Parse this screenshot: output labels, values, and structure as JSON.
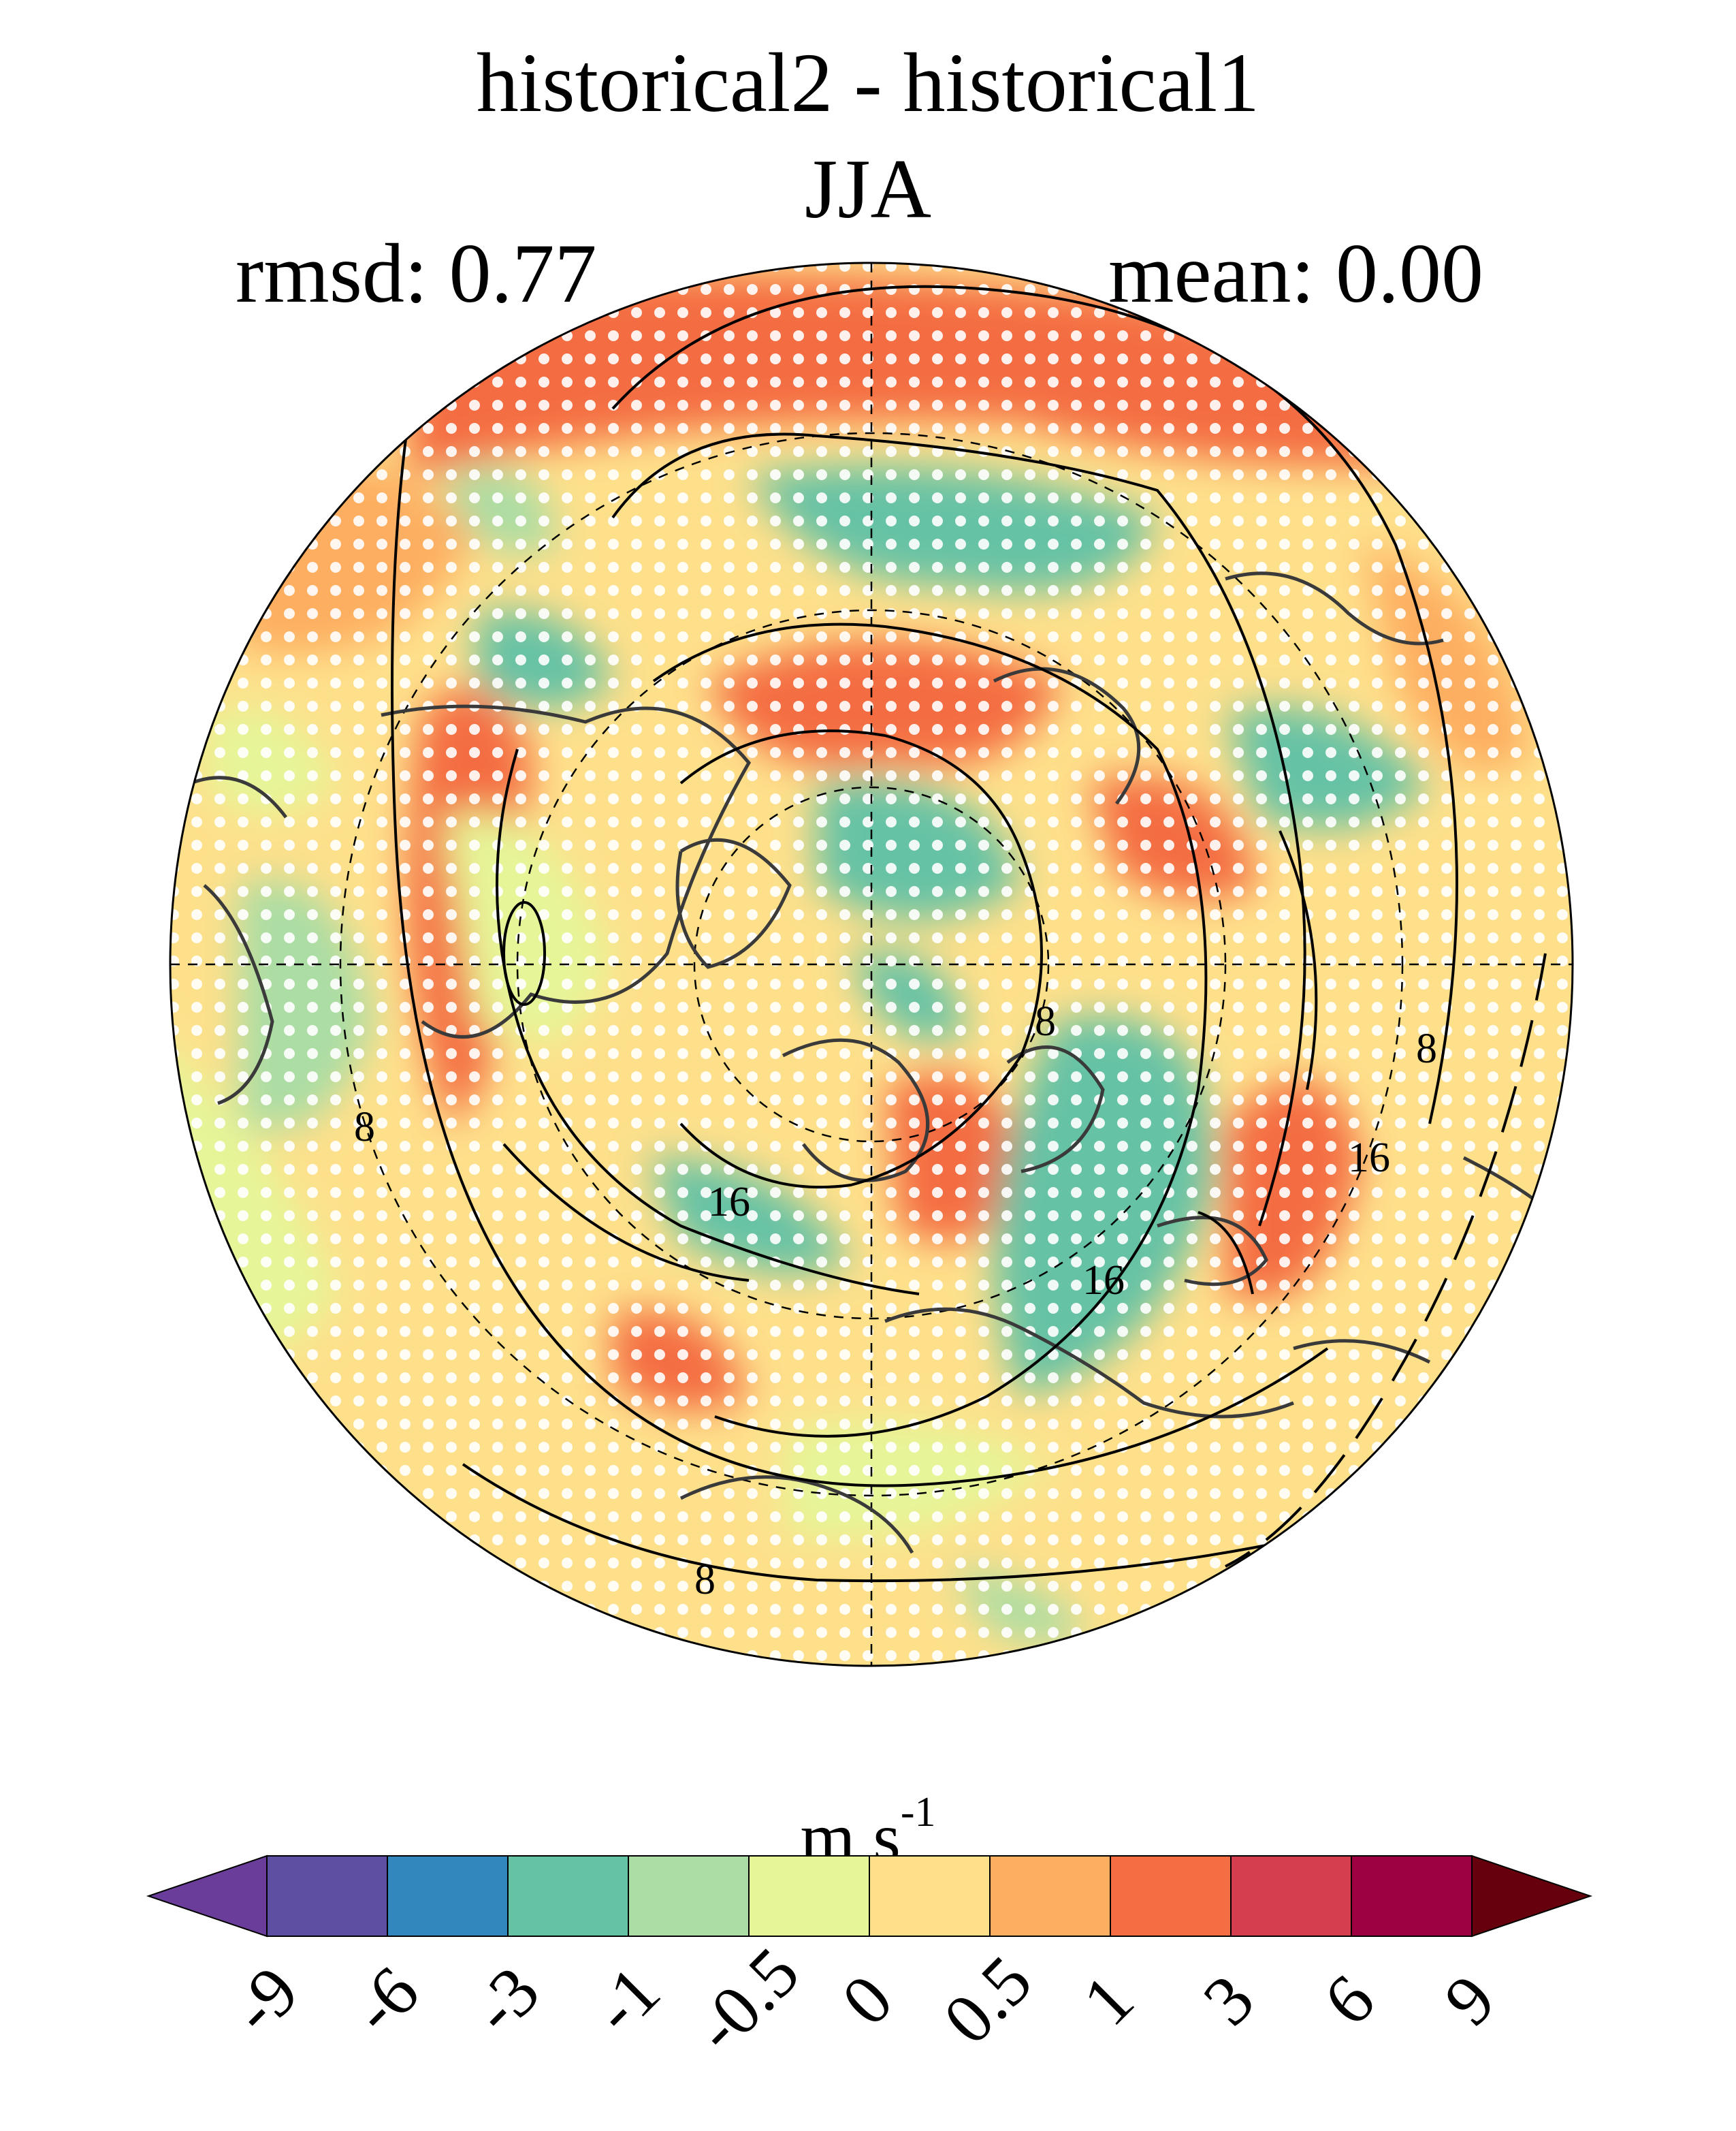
{
  "title": {
    "line1": "historical2 - historical1",
    "line2": "JJA"
  },
  "stats": {
    "rmsd": "rmsd: 0.77",
    "mean": "mean: 0.00"
  },
  "map": {
    "projection": "north-polar-stereographic",
    "contour_labels": [
      "8",
      "8",
      "8",
      "8",
      "16",
      "16",
      "16"
    ],
    "stippling": "white-dots"
  },
  "colorbar": {
    "units_base": "m s",
    "units_exp": "-1",
    "ticks": [
      "-9",
      "-6",
      "-3",
      "-1",
      "-0.5",
      "0",
      "0.5",
      "1",
      "3",
      "6",
      "9"
    ],
    "colors": [
      "#5e4fa2",
      "#3288bd",
      "#66c2a5",
      "#abdda4",
      "#e6f598",
      "#fee08b",
      "#fdae61",
      "#f46d43",
      "#d53e4f",
      "#9e0142"
    ],
    "under_color": "#6a3d9a",
    "over_color": "#67000d"
  }
}
